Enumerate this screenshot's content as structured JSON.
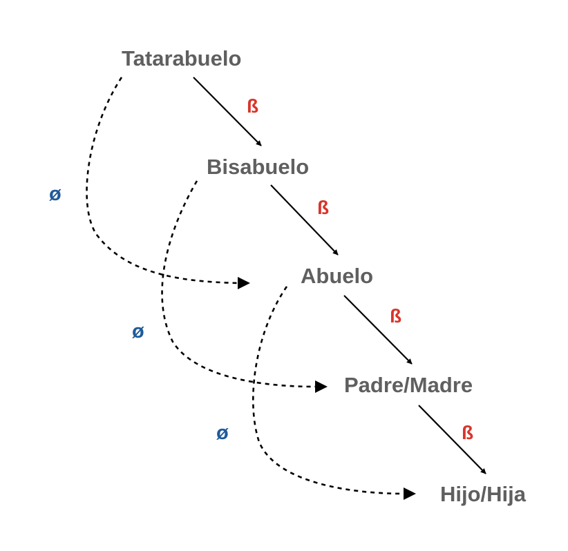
{
  "nodes": [
    {
      "id": "tatarabuelo",
      "label": "Tatarabuelo"
    },
    {
      "id": "bisabuelo",
      "label": "Bisabuelo"
    },
    {
      "id": "abuelo",
      "label": "Abuelo"
    },
    {
      "id": "padre-madre",
      "label": "Padre/Madre"
    },
    {
      "id": "hijo-hija",
      "label": "Hijo/Hija"
    }
  ],
  "direct_edges": [
    {
      "from": "tatarabuelo",
      "to": "bisabuelo",
      "label": "ß"
    },
    {
      "from": "bisabuelo",
      "to": "abuelo",
      "label": "ß"
    },
    {
      "from": "abuelo",
      "to": "padre-madre",
      "label": "ß"
    },
    {
      "from": "padre-madre",
      "to": "hijo-hija",
      "label": "ß"
    }
  ],
  "skip_edges": [
    {
      "from": "tatarabuelo",
      "to": "abuelo",
      "label": "ø"
    },
    {
      "from": "bisabuelo",
      "to": "padre-madre",
      "label": "ø"
    },
    {
      "from": "abuelo",
      "to": "hijo-hija",
      "label": "ø"
    }
  ],
  "colors": {
    "node_text": "#5f5f5f",
    "beta": "#d9352a",
    "phi": "#1f5a9a",
    "edge": "#000000"
  }
}
